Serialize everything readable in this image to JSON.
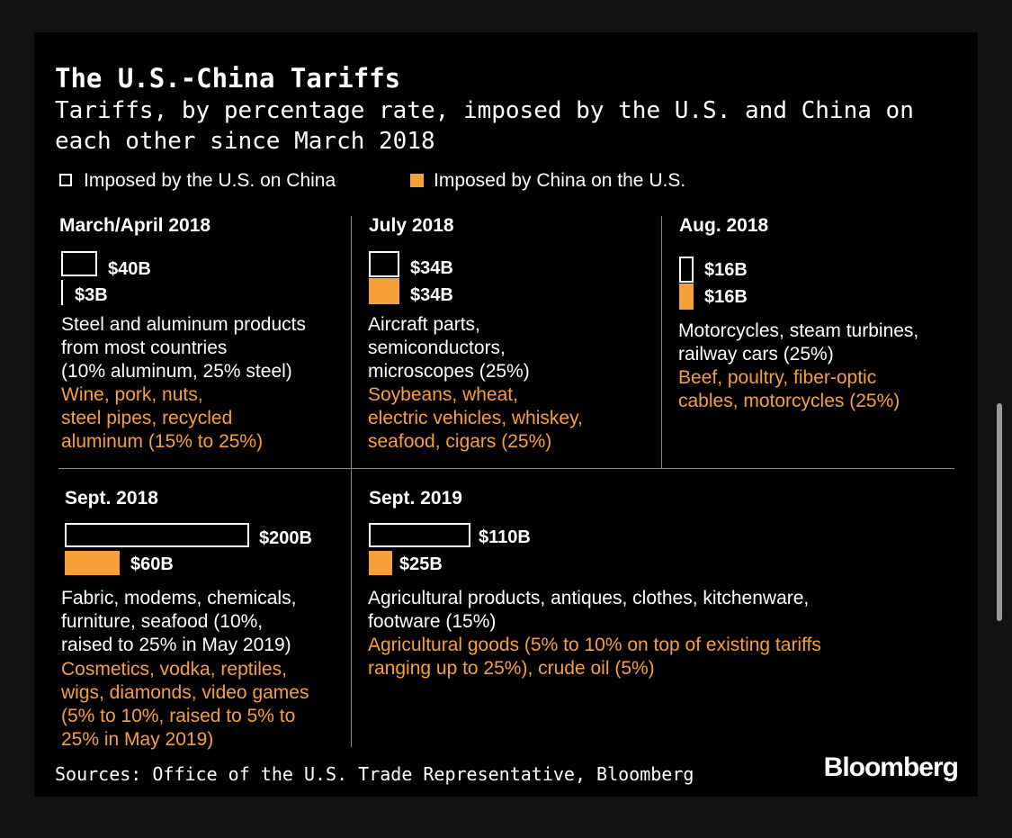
{
  "title": "The U.S.-China Tariffs",
  "subtitle": "Tariffs, by percentage rate, imposed by the U.S. and China on each other since March 2018",
  "legend": {
    "us_label": "Imposed by the U.S. on China",
    "china_label": "Imposed by China on the U.S."
  },
  "colors": {
    "background": "#000000",
    "us": "#ffffff",
    "china": "#f7a03a"
  },
  "chart_data": {
    "type": "bar",
    "title": "The U.S.-China Tariffs",
    "unit": "billions of USD of goods affected",
    "series_names": [
      "Imposed by the U.S. on China",
      "Imposed by China on the U.S."
    ],
    "panels": [
      {
        "period": "March/April 2018",
        "us_value": 40,
        "china_value": 3,
        "us_label": "$40B",
        "china_label": "$3B",
        "us_desc": [
          "Steel and aluminum products",
          "from most countries",
          "(10% aluminum, 25% steel)"
        ],
        "china_desc": [
          "Wine, pork, nuts,",
          "steel pipes, recycled",
          "aluminum (15% to 25%)"
        ]
      },
      {
        "period": "July 2018",
        "us_value": 34,
        "china_value": 34,
        "us_label": "$34B",
        "china_label": "$34B",
        "us_desc": [
          "Aircraft parts,",
          "semiconductors,",
          "microscopes (25%)"
        ],
        "china_desc": [
          "Soybeans, wheat,",
          "electric vehicles, whiskey,",
          "seafood, cigars (25%)"
        ]
      },
      {
        "period": "Aug. 2018",
        "us_value": 16,
        "china_value": 16,
        "us_label": "$16B",
        "china_label": "$16B",
        "us_desc": [
          "Motorcycles, steam turbines,",
          "railway cars (25%)"
        ],
        "china_desc": [
          "Beef, poultry, fiber-optic",
          "cables, motorcycles (25%)"
        ]
      },
      {
        "period": "Sept. 2018",
        "us_value": 200,
        "china_value": 60,
        "us_label": "$200B",
        "china_label": "$60B",
        "us_desc": [
          "Fabric, modems, chemicals,",
          "furniture, seafood (10%,",
          "raised to 25% in May 2019)"
        ],
        "china_desc": [
          "Cosmetics, vodka, reptiles,",
          "wigs, diamonds, video games",
          "(5% to 10%, raised to 5% to",
          "25% in May 2019)"
        ]
      },
      {
        "period": "Sept. 2019",
        "us_value": 110,
        "china_value": 25,
        "us_label": "$110B",
        "china_label": "$25B",
        "us_desc": [
          "Agricultural products, antiques, clothes, kitchenware,",
          "footware (15%)"
        ],
        "china_desc": [
          "Agricultural goods (5% to 10% on top of existing tariffs",
          "ranging up to 25%), crude oil (5%)"
        ]
      }
    ]
  },
  "source": "Sources: Office of the U.S. Trade Representative, Bloomberg",
  "brand": "Bloomberg"
}
